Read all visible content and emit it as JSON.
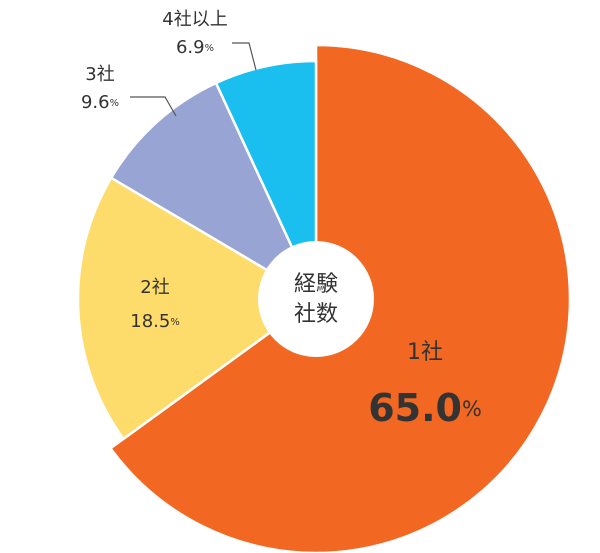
{
  "chart_data": {
    "type": "pie",
    "center_label": [
      "経験",
      "社数"
    ],
    "categories": [
      "1社",
      "2社",
      "3社",
      "4社以上"
    ],
    "values": [
      65.0,
      18.5,
      9.6,
      6.9
    ],
    "value_labels": [
      "65.0%",
      "18.5%",
      "9.6%",
      "6.9%"
    ],
    "colors": [
      "#f26722",
      "#fddc6b",
      "#98a5d4",
      "#1bbfef"
    ]
  }
}
